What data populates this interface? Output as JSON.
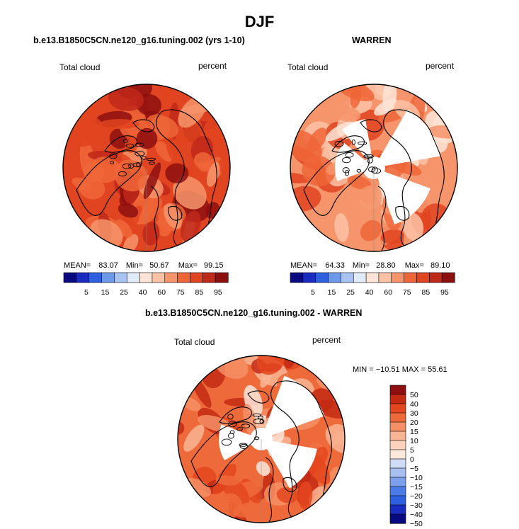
{
  "title": "DJF",
  "colors": {
    "seq": [
      "#0a0a80",
      "#1a2bbf",
      "#2d5fe0",
      "#6f97ea",
      "#a9c3ef",
      "#e2ebf8",
      "#fde4d6",
      "#fbc2a5",
      "#f6946b",
      "#ee6638",
      "#e04420",
      "#c0281a",
      "#8e0f0f"
    ],
    "diff": [
      "#0a0a80",
      "#1a2bbf",
      "#2d5fe0",
      "#4a7be8",
      "#7c9fec",
      "#a8c0f0",
      "#cfdcf5",
      "#fde8dc",
      "#fcd2bc",
      "#f9b494",
      "#f58f65",
      "#ef6a3b",
      "#e4471f",
      "#c32a14",
      "#8e0f0f"
    ]
  },
  "panels": [
    {
      "id": "model",
      "title": "b.e13.B1850C5CN.ne120_g16.tuning.002 (yrs 1-10)",
      "left_label": "Total cloud",
      "right_label": "percent",
      "stats": {
        "mean_label": "MEAN=",
        "mean": "83.07",
        "min_label": "Min=",
        "min": "50.67",
        "max_label": "Max=",
        "max": "99.15"
      },
      "colorbar_ticks": [
        "5",
        "15",
        "25",
        "40",
        "60",
        "75",
        "85",
        "95"
      ],
      "dominant_level": 10
    },
    {
      "id": "obs",
      "title": "WARREN",
      "left_label": "Total cloud",
      "right_label": "percent",
      "stats": {
        "mean_label": "MEAN=",
        "mean": "64.33",
        "min_label": "Min=",
        "min": "28.80",
        "max_label": "Max=",
        "max": "89.10"
      },
      "colorbar_ticks": [
        "5",
        "15",
        "25",
        "40",
        "60",
        "75",
        "85",
        "95"
      ],
      "dominant_level": 8
    },
    {
      "id": "diff",
      "title": "b.e13.B1850C5CN.ne120_g16.tuning.002 - WARREN",
      "left_label": "Total cloud",
      "right_label": "percent",
      "stats_line": "MIN = −10.51  MAX =  55.61",
      "colorbar_ticks": [
        "50",
        "40",
        "30",
        "20",
        "15",
        "10",
        "5",
        "0",
        "−5",
        "−10",
        "−15",
        "−20",
        "−30",
        "−40",
        "−50"
      ],
      "dominant_level": 11
    }
  ]
}
